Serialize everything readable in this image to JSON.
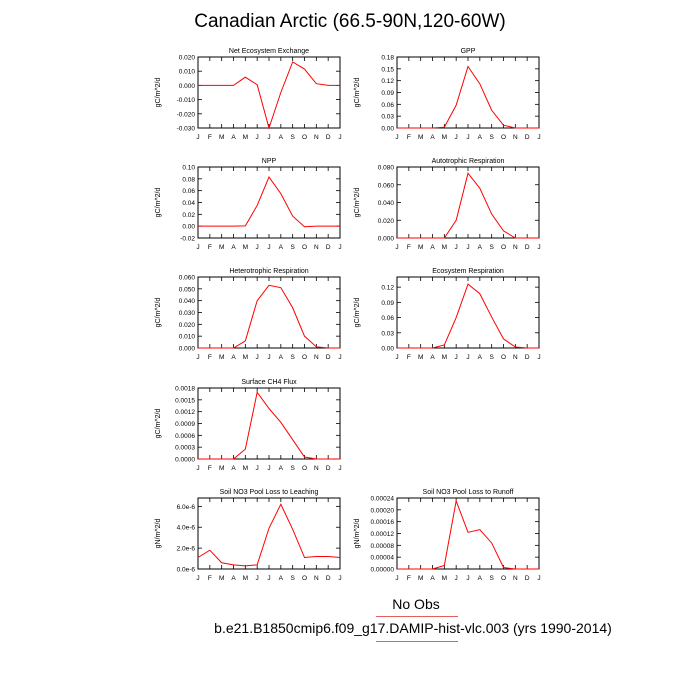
{
  "title": "Canadian Arctic (66.5-90N,120-60W)",
  "legend": {
    "no_obs": "No Obs"
  },
  "caption": "b.e21.B1850cmip6.f09_g17.DAMIP-hist-vlc.003 (yrs 1990-2014)",
  "colors": {
    "line": "#ff0000",
    "rule": "#e06060"
  },
  "chart_data": [
    {
      "type": "line",
      "title": "Net Ecosystem Exchange",
      "ylabel": "gC/m^2/d",
      "categories": [
        "J",
        "F",
        "M",
        "A",
        "M",
        "J",
        "J",
        "A",
        "S",
        "O",
        "N",
        "D",
        "J"
      ],
      "yticks": [
        "0.020",
        "0.010",
        "0.000",
        "-0.010",
        "-0.020",
        "-0.030"
      ],
      "ylim": [
        -0.03,
        0.02
      ],
      "values": [
        0.0,
        0.0,
        0.0,
        0.0,
        0.0058,
        0.0005,
        -0.03,
        -0.005,
        0.0165,
        0.0115,
        0.0012,
        0.0,
        0.0
      ]
    },
    {
      "type": "line",
      "title": "GPP",
      "ylabel": "gC/m^2/d",
      "categories": [
        "J",
        "F",
        "M",
        "A",
        "M",
        "J",
        "J",
        "A",
        "S",
        "O",
        "N",
        "D",
        "J"
      ],
      "yticks": [
        "0.18",
        "0.15",
        "0.12",
        "0.09",
        "0.06",
        "0.03",
        "0.00"
      ],
      "ylim": [
        0,
        0.18
      ],
      "values": [
        0.0,
        0.0,
        0.0,
        0.0,
        0.002,
        0.058,
        0.156,
        0.112,
        0.045,
        0.007,
        0.0,
        0.0,
        0.0
      ]
    },
    {
      "type": "line",
      "title": "NPP",
      "ylabel": "gC/m^2/d",
      "categories": [
        "J",
        "F",
        "M",
        "A",
        "M",
        "J",
        "J",
        "A",
        "S",
        "O",
        "N",
        "D",
        "J"
      ],
      "yticks": [
        "0.10",
        "0.08",
        "0.06",
        "0.04",
        "0.02",
        "0.00",
        "-0.02"
      ],
      "ylim": [
        -0.02,
        0.1
      ],
      "values": [
        0.0,
        0.0,
        0.0,
        0.0,
        0.0005,
        0.035,
        0.083,
        0.055,
        0.017,
        -0.001,
        0.0,
        0.0,
        0.0
      ]
    },
    {
      "type": "line",
      "title": "Autotrophic Respiration",
      "ylabel": "gC/m^2/d",
      "categories": [
        "J",
        "F",
        "M",
        "A",
        "M",
        "J",
        "J",
        "A",
        "S",
        "O",
        "N",
        "D",
        "J"
      ],
      "yticks": [
        "0.080",
        "0.060",
        "0.040",
        "0.020",
        "0.000"
      ],
      "ylim": [
        0,
        0.08
      ],
      "values": [
        0.0,
        0.0,
        0.0,
        0.0,
        0.0,
        0.02,
        0.073,
        0.056,
        0.027,
        0.008,
        0.0,
        0.0,
        0.0
      ]
    },
    {
      "type": "line",
      "title": "Heterotrophic Respiration",
      "ylabel": "gC/m^2/d",
      "categories": [
        "J",
        "F",
        "M",
        "A",
        "M",
        "J",
        "J",
        "A",
        "S",
        "O",
        "N",
        "D",
        "J"
      ],
      "yticks": [
        "0.060",
        "0.050",
        "0.040",
        "0.030",
        "0.020",
        "0.010",
        "0.000"
      ],
      "ylim": [
        0,
        0.06
      ],
      "values": [
        0.0,
        0.0,
        0.0,
        0.0,
        0.006,
        0.04,
        0.053,
        0.051,
        0.034,
        0.01,
        0.001,
        0.0,
        0.0
      ]
    },
    {
      "type": "line",
      "title": "Ecosystem Respiration",
      "ylabel": "gC/m^2/d",
      "categories": [
        "J",
        "F",
        "M",
        "A",
        "M",
        "J",
        "J",
        "A",
        "S",
        "O",
        "N",
        "D",
        "J"
      ],
      "yticks": [
        "0.12",
        "0.09",
        "0.06",
        "0.03",
        "0.00"
      ],
      "ylim": [
        0,
        0.14
      ],
      "values": [
        0.0,
        0.0,
        0.0,
        0.0,
        0.006,
        0.06,
        0.126,
        0.107,
        0.061,
        0.018,
        0.002,
        0.0,
        0.0
      ]
    },
    {
      "type": "line",
      "title": "Surface CH4 Flux",
      "ylabel": "gC/m^2/d",
      "categories": [
        "J",
        "F",
        "M",
        "A",
        "M",
        "J",
        "J",
        "A",
        "S",
        "O",
        "N",
        "D",
        "J"
      ],
      "yticks": [
        "0.0018",
        "0.0015",
        "0.0012",
        "0.0009",
        "0.0006",
        "0.0003",
        "0.0000"
      ],
      "ylim": [
        0,
        0.0018
      ],
      "values": [
        0.0,
        0.0,
        0.0,
        0.0,
        0.00025,
        0.00169,
        0.00128,
        0.00093,
        0.00049,
        5e-05,
        0.0,
        0.0,
        0.0
      ]
    },
    {
      "type": "line",
      "title": "Soil NO3 Pool Loss to Leaching",
      "ylabel": "gN/m^2/d",
      "categories": [
        "J",
        "F",
        "M",
        "A",
        "M",
        "J",
        "J",
        "A",
        "S",
        "O",
        "N",
        "D",
        "J"
      ],
      "yticks": [
        "6.0e-6",
        "4.0e-6",
        "2.0e-6",
        "0.0e-6"
      ],
      "ylim": [
        0,
        6.8e-06
      ],
      "values": [
        1.1e-06,
        1.8e-06,
        6e-07,
        4e-07,
        3e-07,
        4e-07,
        3.9e-06,
        6.2e-06,
        3.8e-06,
        1.1e-06,
        1.2e-06,
        1.2e-06,
        1.1e-06
      ]
    },
    {
      "type": "line",
      "title": "Soil NO3 Pool Loss to Runoff",
      "ylabel": "gN/m^2/d",
      "categories": [
        "J",
        "F",
        "M",
        "A",
        "M",
        "J",
        "J",
        "A",
        "S",
        "O",
        "N",
        "D",
        "J"
      ],
      "yticks": [
        "0.00024",
        "0.00020",
        "0.00016",
        "0.00012",
        "0.00008",
        "0.00004",
        "0.00000"
      ],
      "ylim": [
        0,
        0.00024
      ],
      "values": [
        0.0,
        0.0,
        0.0,
        0.0,
        1.2e-05,
        0.00023,
        0.000124,
        0.000133,
        8.8e-05,
        5e-06,
        0.0,
        0.0,
        0.0
      ]
    }
  ]
}
